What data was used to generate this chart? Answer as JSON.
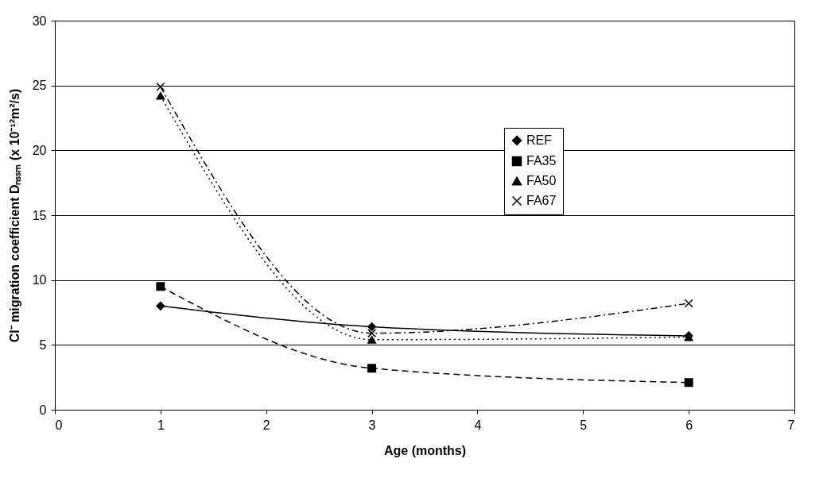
{
  "chart_data": {
    "type": "line",
    "xlabel": "Age (months)",
    "ylabel": "Cl⁻ migration coefficient Dₙₛₛₘ (x 10⁻¹²m²/s)",
    "x": [
      1,
      3,
      6
    ],
    "series": [
      {
        "name": "REF",
        "color": "#000000",
        "values": [
          8.0,
          6.4,
          5.7
        ],
        "marker": "diamond",
        "line_style": "solid"
      },
      {
        "name": "FA35",
        "color": "#000000",
        "values": [
          9.5,
          3.2,
          2.1
        ],
        "marker": "square",
        "line_style": "dashed"
      },
      {
        "name": "FA50",
        "color": "#000000",
        "values": [
          24.2,
          5.4,
          5.6
        ],
        "marker": "triangle",
        "line_style": "dotted"
      },
      {
        "name": "FA67",
        "color": "#000000",
        "values": [
          24.9,
          5.9,
          8.2
        ],
        "marker": "cross",
        "line_style": "dashdot"
      }
    ],
    "xlim": [
      0,
      7
    ],
    "xticks": [
      0,
      1,
      2,
      3,
      4,
      5,
      6,
      7
    ],
    "ylim": [
      0,
      30
    ],
    "yticks": [
      0,
      5,
      10,
      15,
      20,
      25,
      30
    ],
    "grid": "y",
    "legend": "right"
  }
}
